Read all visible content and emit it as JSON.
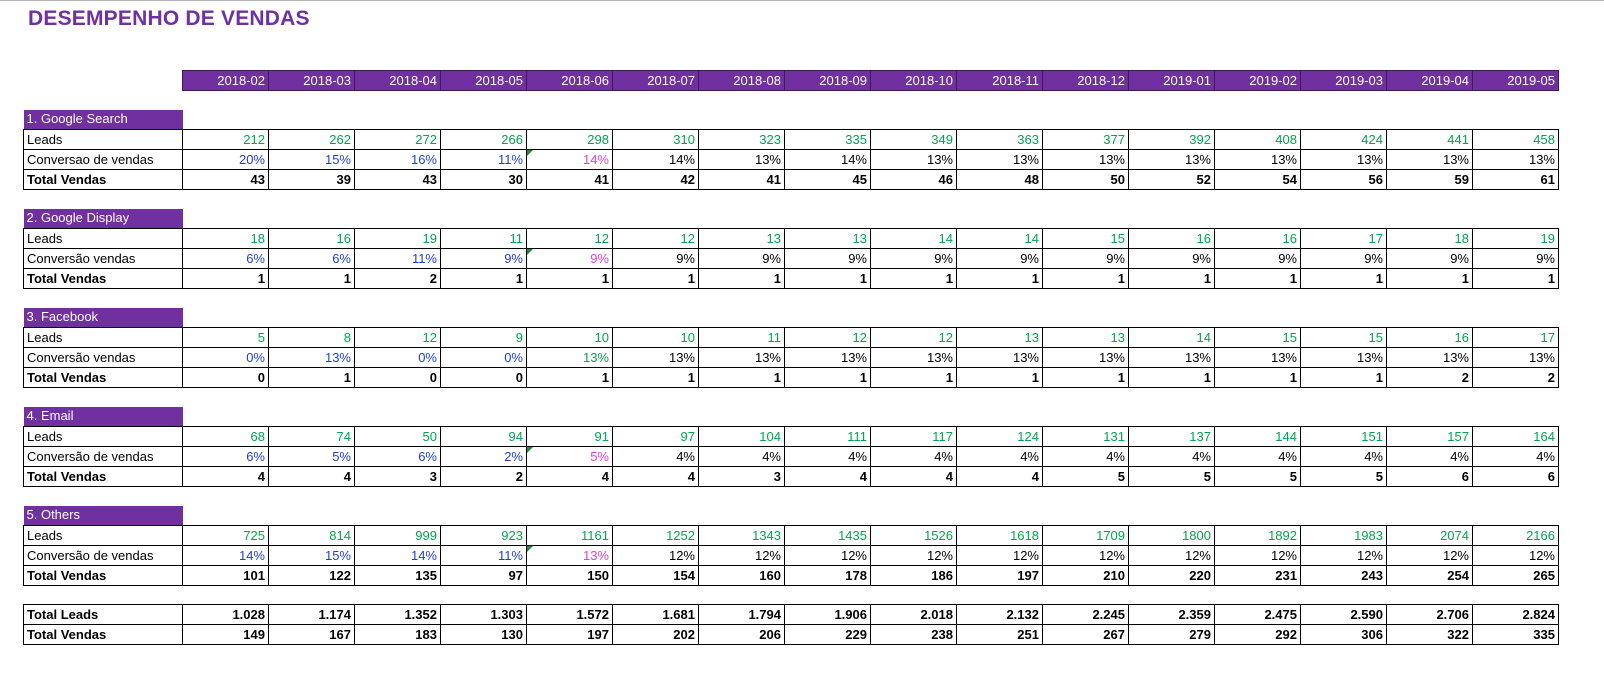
{
  "title": "DESEMPENHO DE VENDAS",
  "months": [
    "2018-02",
    "2018-03",
    "2018-04",
    "2018-05",
    "2018-06",
    "2018-07",
    "2018-08",
    "2018-09",
    "2018-10",
    "2018-11",
    "2018-12",
    "2019-01",
    "2019-02",
    "2019-03",
    "2019-04",
    "2019-05"
  ],
  "sections": [
    {
      "name": "1. Google Search",
      "leads_label": "Leads",
      "conv_label": "Conversao de vendas",
      "total_label": "Total Vendas",
      "leads": [
        "212",
        "262",
        "272",
        "266",
        "298",
        "310",
        "323",
        "335",
        "349",
        "363",
        "377",
        "392",
        "408",
        "424",
        "441",
        "458"
      ],
      "conv": [
        "20%",
        "15%",
        "16%",
        "11%",
        "14%",
        "14%",
        "13%",
        "14%",
        "13%",
        "13%",
        "13%",
        "13%",
        "13%",
        "13%",
        "13%",
        "13%"
      ],
      "conv_style": [
        "act",
        "act",
        "act",
        "act",
        "hl",
        "proj",
        "proj",
        "proj",
        "proj",
        "proj",
        "proj",
        "proj",
        "proj",
        "proj",
        "proj",
        "proj"
      ],
      "total": [
        "43",
        "39",
        "43",
        "30",
        "41",
        "42",
        "41",
        "45",
        "46",
        "48",
        "50",
        "52",
        "54",
        "56",
        "59",
        "61"
      ]
    },
    {
      "name": "2. Google Display",
      "leads_label": "Leads",
      "conv_label": "Conversão vendas",
      "total_label": "Total Vendas",
      "leads": [
        "18",
        "16",
        "19",
        "11",
        "12",
        "12",
        "13",
        "13",
        "14",
        "14",
        "15",
        "16",
        "16",
        "17",
        "18",
        "19"
      ],
      "conv": [
        "6%",
        "6%",
        "11%",
        "9%",
        "9%",
        "9%",
        "9%",
        "9%",
        "9%",
        "9%",
        "9%",
        "9%",
        "9%",
        "9%",
        "9%",
        "9%"
      ],
      "conv_style": [
        "act",
        "act",
        "act",
        "act",
        "hl",
        "proj",
        "proj",
        "proj",
        "proj",
        "proj",
        "proj",
        "proj",
        "proj",
        "proj",
        "proj",
        "proj"
      ],
      "total": [
        "1",
        "1",
        "2",
        "1",
        "1",
        "1",
        "1",
        "1",
        "1",
        "1",
        "1",
        "1",
        "1",
        "1",
        "1",
        "1"
      ]
    },
    {
      "name": "3. Facebook",
      "leads_label": "Leads",
      "conv_label": "Conversão vendas",
      "total_label": "Total Vendas",
      "leads": [
        "5",
        "8",
        "12",
        "9",
        "10",
        "10",
        "11",
        "12",
        "12",
        "13",
        "13",
        "14",
        "15",
        "15",
        "16",
        "17"
      ],
      "conv": [
        "0%",
        "13%",
        "0%",
        "0%",
        "13%",
        "13%",
        "13%",
        "13%",
        "13%",
        "13%",
        "13%",
        "13%",
        "13%",
        "13%",
        "13%",
        "13%"
      ],
      "conv_style": [
        "act",
        "act",
        "act",
        "act",
        "act2",
        "proj",
        "proj",
        "proj",
        "proj",
        "proj",
        "proj",
        "proj",
        "proj",
        "proj",
        "proj",
        "proj"
      ],
      "total": [
        "0",
        "1",
        "0",
        "0",
        "1",
        "1",
        "1",
        "1",
        "1",
        "1",
        "1",
        "1",
        "1",
        "1",
        "2",
        "2"
      ]
    },
    {
      "name": "4. Email",
      "leads_label": "Leads",
      "conv_label": "Conversão de vendas",
      "total_label": "Total Vendas",
      "leads": [
        "68",
        "74",
        "50",
        "94",
        "91",
        "97",
        "104",
        "111",
        "117",
        "124",
        "131",
        "137",
        "144",
        "151",
        "157",
        "164"
      ],
      "conv": [
        "6%",
        "5%",
        "6%",
        "2%",
        "5%",
        "4%",
        "4%",
        "4%",
        "4%",
        "4%",
        "4%",
        "4%",
        "4%",
        "4%",
        "4%",
        "4%"
      ],
      "conv_style": [
        "act",
        "act",
        "act",
        "act",
        "hl",
        "proj",
        "proj",
        "proj",
        "proj",
        "proj",
        "proj",
        "proj",
        "proj",
        "proj",
        "proj",
        "proj"
      ],
      "total": [
        "4",
        "4",
        "3",
        "2",
        "4",
        "4",
        "3",
        "4",
        "4",
        "4",
        "5",
        "5",
        "5",
        "5",
        "6",
        "6"
      ]
    },
    {
      "name": "5. Others",
      "leads_label": "Leads",
      "conv_label": "Conversão de vendas",
      "total_label": "Total Vendas",
      "leads": [
        "725",
        "814",
        "999",
        "923",
        "1161",
        "1252",
        "1343",
        "1435",
        "1526",
        "1618",
        "1709",
        "1800",
        "1892",
        "1983",
        "2074",
        "2166"
      ],
      "conv": [
        "14%",
        "15%",
        "14%",
        "11%",
        "13%",
        "12%",
        "12%",
        "12%",
        "12%",
        "12%",
        "12%",
        "12%",
        "12%",
        "12%",
        "12%",
        "12%"
      ],
      "conv_style": [
        "act",
        "act",
        "act",
        "act",
        "hl",
        "proj",
        "proj",
        "proj",
        "proj",
        "proj",
        "proj",
        "proj",
        "proj",
        "proj",
        "proj",
        "proj"
      ],
      "total": [
        "101",
        "122",
        "135",
        "97",
        "150",
        "154",
        "160",
        "178",
        "186",
        "197",
        "210",
        "220",
        "231",
        "243",
        "254",
        "265"
      ]
    }
  ],
  "summary": {
    "leads_label": "Total Leads",
    "sales_label": "Total Vendas",
    "leads": [
      "1.028",
      "1.174",
      "1.352",
      "1.303",
      "1.572",
      "1.681",
      "1.794",
      "1.906",
      "2.018",
      "2.132",
      "2.245",
      "2.359",
      "2.475",
      "2.590",
      "2.706",
      "2.824"
    ],
    "sales": [
      "149",
      "167",
      "183",
      "130",
      "197",
      "202",
      "206",
      "229",
      "238",
      "251",
      "267",
      "279",
      "292",
      "306",
      "322",
      "335"
    ]
  },
  "colors": {
    "header_bg": "#7030a0",
    "leads_text": "#00a550",
    "actual_conv_text": "#1f3fd1",
    "highlight_conv_text": "#e040d0"
  }
}
